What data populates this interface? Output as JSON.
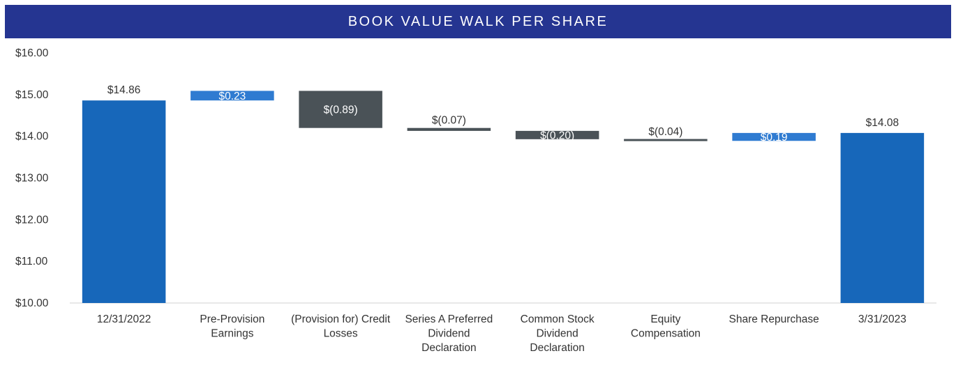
{
  "chart_data": {
    "type": "bar",
    "subtype": "waterfall",
    "title": "BOOK VALUE WALK PER SHARE",
    "ylim": [
      10,
      16
    ],
    "yticks": [
      {
        "value": 10,
        "label": "$10.00"
      },
      {
        "value": 11,
        "label": "$11.00"
      },
      {
        "value": 12,
        "label": "$12.00"
      },
      {
        "value": 13,
        "label": "$13.00"
      },
      {
        "value": 14,
        "label": "$14.00"
      },
      {
        "value": 15,
        "label": "$15.00"
      },
      {
        "value": 16,
        "label": "$16.00"
      }
    ],
    "grid": false,
    "legend": "none",
    "colors": {
      "total": "#1767BA",
      "increase": "#2F7BD1",
      "decrease": "#4A5257",
      "banner": "#253591"
    },
    "bars": [
      {
        "category": [
          "12/31/2022"
        ],
        "kind": "total",
        "start": 10,
        "end": 14.86,
        "label": "$14.86"
      },
      {
        "category": [
          "Pre-Provision",
          "Earnings"
        ],
        "kind": "increase",
        "start": 14.86,
        "end": 15.09,
        "label": "$0.23"
      },
      {
        "category": [
          "(Provision for) Credit",
          "Losses"
        ],
        "kind": "decrease",
        "start": 15.09,
        "end": 14.2,
        "label": "$(0.89)"
      },
      {
        "category": [
          "Series A Preferred",
          "Dividend",
          "Declaration"
        ],
        "kind": "decrease",
        "start": 14.2,
        "end": 14.13,
        "label": "$(0.07)"
      },
      {
        "category": [
          "Common Stock",
          "Dividend",
          "Declaration"
        ],
        "kind": "decrease",
        "start": 14.13,
        "end": 13.93,
        "label": "$(0.20)"
      },
      {
        "category": [
          "Equity",
          "Compensation"
        ],
        "kind": "decrease",
        "start": 13.93,
        "end": 13.89,
        "label": "$(0.04)"
      },
      {
        "category": [
          "Share Repurchase"
        ],
        "kind": "increase",
        "start": 13.89,
        "end": 14.08,
        "label": "$0.19"
      },
      {
        "category": [
          "3/31/2023"
        ],
        "kind": "total",
        "start": 10,
        "end": 14.08,
        "label": "$14.08"
      }
    ]
  }
}
